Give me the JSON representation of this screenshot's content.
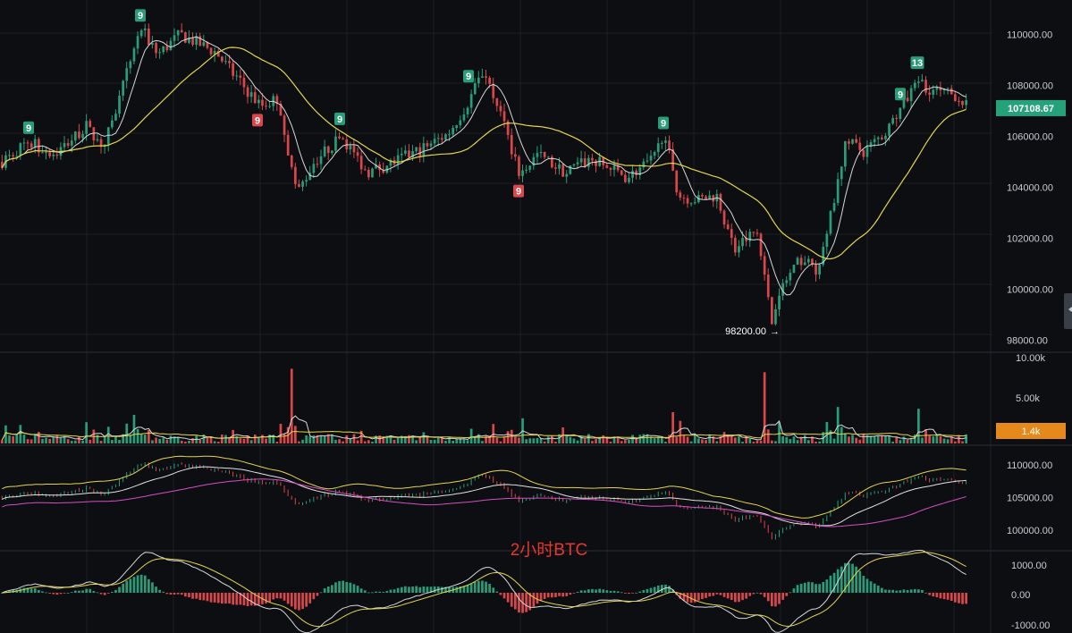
{
  "watermark": "2小时BTC",
  "colors": {
    "background": "#0c0e11",
    "grid": "#1c1f24",
    "up": "#2a9d78",
    "down": "#d9474b",
    "ma_fast": "#d8d8d8",
    "ma_slow": "#e6d54a",
    "ma_mid": "#e3e3e3",
    "ma_long": "#d54fc9",
    "axis_text": "#c8ccd2",
    "price_badge": "#25a27a",
    "volume_badge": "#e5891b",
    "watermark": "#e8362f"
  },
  "price_axis": {
    "ticks": [
      "110000.00",
      "108000.00",
      "106000.00",
      "104000.00",
      "102000.00",
      "100000.00",
      "98000.00"
    ]
  },
  "volume_axis": {
    "ticks": [
      "10.00k",
      "5.00k"
    ]
  },
  "ma_axis": {
    "ticks": [
      "110000.00",
      "105000.00",
      "100000.00"
    ]
  },
  "macd_axis": {
    "ticks": [
      "1000.00",
      "0.00",
      "-1000.00"
    ]
  },
  "current_price_label": "107108.67",
  "current_volume_label": "1.4k",
  "low_annotation": "98200.00",
  "td_markers": [
    {
      "label": "9",
      "x": 32,
      "type": "up"
    },
    {
      "label": "9",
      "x": 157,
      "type": "up"
    },
    {
      "label": "9",
      "x": 288,
      "type": "down"
    },
    {
      "label": "9",
      "x": 380,
      "type": "up"
    },
    {
      "label": "9",
      "x": 524,
      "type": "up"
    },
    {
      "label": "9",
      "x": 580,
      "type": "down"
    },
    {
      "label": "9",
      "x": 742,
      "type": "up"
    },
    {
      "label": "9",
      "x": 1007,
      "type": "up"
    },
    {
      "label": "13",
      "x": 1026,
      "type": "up"
    }
  ],
  "chart_data": {
    "type": "candlestick",
    "title": "2小时BTC",
    "ylim": [
      97600,
      111000
    ],
    "key_points": [
      [
        0,
        105000
      ],
      [
        30,
        105800
      ],
      [
        60,
        105300
      ],
      [
        95,
        106400
      ],
      [
        115,
        105600
      ],
      [
        135,
        107800
      ],
      [
        155,
        110300
      ],
      [
        175,
        109200
      ],
      [
        200,
        110000
      ],
      [
        240,
        109300
      ],
      [
        265,
        108200
      ],
      [
        290,
        107200
      ],
      [
        310,
        107500
      ],
      [
        330,
        103700
      ],
      [
        350,
        105000
      ],
      [
        380,
        106000
      ],
      [
        410,
        104600
      ],
      [
        440,
        105000
      ],
      [
        470,
        105500
      ],
      [
        500,
        106100
      ],
      [
        520,
        107200
      ],
      [
        540,
        108600
      ],
      [
        560,
        106800
      ],
      [
        580,
        104500
      ],
      [
        600,
        105300
      ],
      [
        630,
        104600
      ],
      [
        660,
        105100
      ],
      [
        700,
        104400
      ],
      [
        730,
        105100
      ],
      [
        742,
        106300
      ],
      [
        755,
        103700
      ],
      [
        780,
        103500
      ],
      [
        800,
        103700
      ],
      [
        820,
        101600
      ],
      [
        845,
        102300
      ],
      [
        862,
        98700
      ],
      [
        875,
        100200
      ],
      [
        895,
        101200
      ],
      [
        915,
        100700
      ],
      [
        930,
        103300
      ],
      [
        945,
        105800
      ],
      [
        965,
        105400
      ],
      [
        990,
        106200
      ],
      [
        1010,
        107300
      ],
      [
        1025,
        108100
      ],
      [
        1050,
        107700
      ],
      [
        1070,
        107600
      ],
      [
        1082,
        107100
      ]
    ],
    "volume_range": [
      0,
      10000
    ],
    "ma_panel_range": [
      97000,
      112500
    ],
    "macd_range": [
      -1150,
      1150
    ]
  }
}
